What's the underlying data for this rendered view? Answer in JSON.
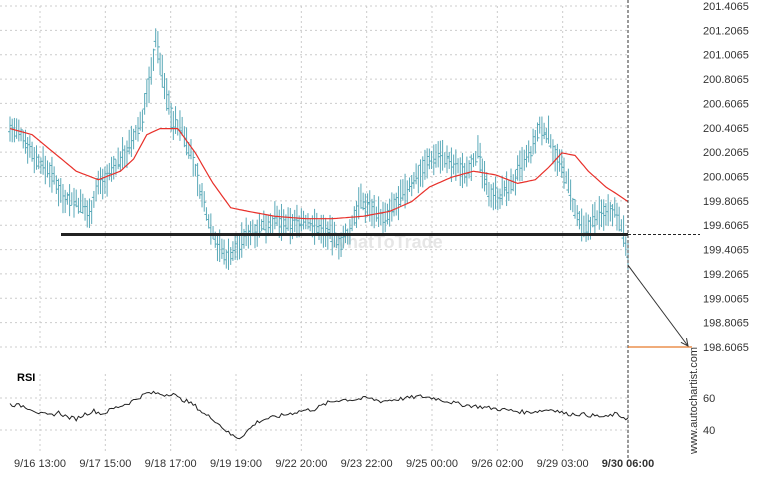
{
  "watermark": "WhatToTrade",
  "brand": "www.autochartist.com",
  "colors": {
    "bars": "#5aa9b8",
    "sma": "#e8302a",
    "support": "#222222",
    "forecast": "#e87a2a",
    "grid": "#cccccc",
    "rsi_line": "#222222"
  },
  "icons": {
    "forecast_arrow": "arrow-icon"
  },
  "chart_data": [
    {
      "type": "line",
      "panel": "price",
      "series_name_visible": false,
      "y_ticks": [
        "201.4065",
        "201.2065",
        "201.0065",
        "200.8065",
        "200.6065",
        "200.4065",
        "200.2065",
        "200.0065",
        "199.8065",
        "199.6065",
        "199.4065",
        "199.2065",
        "199.0065",
        "198.8065",
        "198.6065"
      ],
      "ylim": [
        198.6065,
        201.4065
      ],
      "x_ticks": [
        "9/16 13:00",
        "9/17 15:00",
        "9/18 17:00",
        "9/19 19:00",
        "9/22 20:00",
        "9/23 22:00",
        "9/25 00:00",
        "9/26 02:00",
        "9/29 03:00",
        "9/30 06:00"
      ],
      "support_level": 199.53,
      "current_price": 199.36,
      "forecast_target": 198.6065,
      "forecast_note": "",
      "bar_anchors": [
        [
          0,
          200.4
        ],
        [
          6,
          200.33
        ],
        [
          12,
          200.15
        ],
        [
          18,
          200.05
        ],
        [
          24,
          199.85
        ],
        [
          30,
          199.8
        ],
        [
          36,
          199.7
        ],
        [
          40,
          199.95
        ],
        [
          44,
          200.0
        ],
        [
          48,
          200.1
        ],
        [
          52,
          200.2
        ],
        [
          56,
          200.3
        ],
        [
          60,
          200.5
        ],
        [
          64,
          200.85
        ],
        [
          66,
          201.15
        ],
        [
          70,
          200.75
        ],
        [
          74,
          200.45
        ],
        [
          78,
          200.4
        ],
        [
          82,
          200.2
        ],
        [
          86,
          199.9
        ],
        [
          90,
          199.65
        ],
        [
          94,
          199.45
        ],
        [
          98,
          199.35
        ],
        [
          102,
          199.4
        ],
        [
          108,
          199.55
        ],
        [
          114,
          199.6
        ],
        [
          120,
          199.65
        ],
        [
          126,
          199.6
        ],
        [
          132,
          199.65
        ],
        [
          138,
          199.6
        ],
        [
          144,
          199.55
        ],
        [
          150,
          199.45
        ],
        [
          154,
          199.55
        ],
        [
          158,
          199.8
        ],
        [
          164,
          199.75
        ],
        [
          170,
          199.65
        ],
        [
          176,
          199.8
        ],
        [
          182,
          199.95
        ],
        [
          188,
          200.1
        ],
        [
          194,
          200.2
        ],
        [
          200,
          200.1
        ],
        [
          206,
          200.05
        ],
        [
          212,
          200.2
        ],
        [
          216,
          199.9
        ],
        [
          222,
          199.85
        ],
        [
          228,
          199.95
        ],
        [
          232,
          200.1
        ],
        [
          236,
          200.2
        ],
        [
          240,
          200.4
        ],
        [
          244,
          200.35
        ],
        [
          248,
          200.15
        ],
        [
          252,
          200.0
        ],
        [
          256,
          199.7
        ],
        [
          260,
          199.55
        ],
        [
          264,
          199.65
        ],
        [
          268,
          199.7
        ],
        [
          272,
          199.75
        ],
        [
          276,
          199.7
        ],
        [
          280,
          199.36
        ]
      ],
      "sma_anchors": [
        [
          0,
          200.4
        ],
        [
          10,
          200.35
        ],
        [
          20,
          200.2
        ],
        [
          30,
          200.05
        ],
        [
          40,
          199.98
        ],
        [
          50,
          200.05
        ],
        [
          56,
          200.15
        ],
        [
          62,
          200.35
        ],
        [
          68,
          200.4
        ],
        [
          76,
          200.4
        ],
        [
          84,
          200.2
        ],
        [
          92,
          199.95
        ],
        [
          100,
          199.75
        ],
        [
          108,
          199.72
        ],
        [
          120,
          199.68
        ],
        [
          134,
          199.66
        ],
        [
          146,
          199.66
        ],
        [
          160,
          199.68
        ],
        [
          172,
          199.72
        ],
        [
          182,
          199.8
        ],
        [
          190,
          199.92
        ],
        [
          200,
          200.0
        ],
        [
          210,
          200.05
        ],
        [
          220,
          200.02
        ],
        [
          230,
          199.95
        ],
        [
          238,
          199.98
        ],
        [
          244,
          200.08
        ],
        [
          250,
          200.2
        ],
        [
          256,
          200.18
        ],
        [
          262,
          200.05
        ],
        [
          270,
          199.92
        ],
        [
          276,
          199.85
        ],
        [
          280,
          199.8
        ]
      ]
    },
    {
      "type": "line",
      "panel": "rsi",
      "title": "RSI",
      "y_ticks": [
        "60",
        "40"
      ],
      "ylim": [
        30,
        70
      ],
      "anchors": [
        [
          0,
          56
        ],
        [
          6,
          55
        ],
        [
          10,
          53
        ],
        [
          14,
          50
        ],
        [
          18,
          49
        ],
        [
          22,
          51
        ],
        [
          26,
          48
        ],
        [
          30,
          47
        ],
        [
          34,
          50
        ],
        [
          38,
          52
        ],
        [
          42,
          50
        ],
        [
          46,
          53
        ],
        [
          50,
          55
        ],
        [
          54,
          57
        ],
        [
          58,
          60
        ],
        [
          62,
          63
        ],
        [
          66,
          63
        ],
        [
          70,
          62
        ],
        [
          74,
          63
        ],
        [
          76,
          60
        ],
        [
          80,
          58
        ],
        [
          84,
          55
        ],
        [
          88,
          50
        ],
        [
          92,
          47
        ],
        [
          96,
          42
        ],
        [
          100,
          37
        ],
        [
          104,
          35
        ],
        [
          108,
          40
        ],
        [
          112,
          45
        ],
        [
          116,
          47
        ],
        [
          120,
          48
        ],
        [
          126,
          50
        ],
        [
          132,
          52
        ],
        [
          138,
          53
        ],
        [
          144,
          57
        ],
        [
          150,
          59
        ],
        [
          156,
          59
        ],
        [
          162,
          60
        ],
        [
          168,
          58
        ],
        [
          174,
          59
        ],
        [
          180,
          60
        ],
        [
          186,
          61
        ],
        [
          192,
          60
        ],
        [
          198,
          58
        ],
        [
          204,
          56
        ],
        [
          210,
          55
        ],
        [
          216,
          54
        ],
        [
          222,
          53
        ],
        [
          228,
          52
        ],
        [
          234,
          51
        ],
        [
          240,
          52
        ],
        [
          246,
          53
        ],
        [
          252,
          50
        ],
        [
          258,
          50
        ],
        [
          264,
          49
        ],
        [
          270,
          48
        ],
        [
          274,
          50
        ],
        [
          278,
          48
        ],
        [
          280,
          47
        ]
      ]
    }
  ]
}
